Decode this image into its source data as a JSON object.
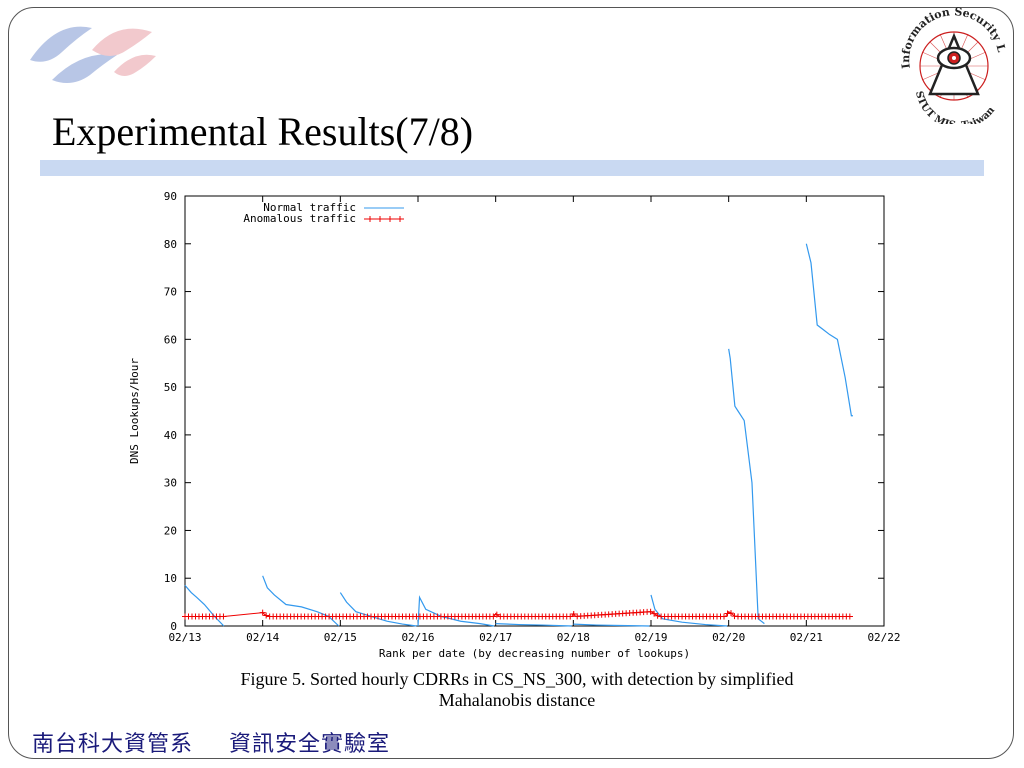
{
  "slide": {
    "title": "Experimental Results(7/8)",
    "caption_line1": "Figure 5. Sorted hourly CDRRs in CS_NS_300, with detection by simplified",
    "caption_line2": "Mahalanobis distance",
    "footer_left": "南台科大資管系",
    "footer_right": "資訊安全實驗室",
    "seal_text": "Information Security Lab.",
    "seal_bottom": "STUT MIS, Taiwan"
  },
  "colors": {
    "accent_bar": "#c9d9f2",
    "normal_series": "#3399ee",
    "anomalous_series": "#ee0000",
    "seal_red": "#cc1f1f"
  },
  "chart_data": {
    "type": "line",
    "xlabel": "Rank per date (by decreasing number of lookups)",
    "ylabel": "DNS Lookups/Hour",
    "x_tick_labels": [
      "02/13",
      "02/14",
      "02/15",
      "02/16",
      "02/17",
      "02/18",
      "02/19",
      "02/20",
      "02/21",
      "02/22"
    ],
    "y_ticks": [
      0,
      10,
      20,
      30,
      40,
      50,
      60,
      70,
      80,
      90
    ],
    "xlim": [
      0,
      9
    ],
    "ylim": [
      0,
      90
    ],
    "legend_position": "top-left",
    "series": [
      {
        "name": "Normal traffic",
        "x": [
          0,
          0.08,
          0.15,
          0.25,
          0.38,
          0.5,
          1.0,
          1.06,
          1.15,
          1.3,
          1.5,
          1.7,
          1.85,
          1.98,
          2.0,
          2.08,
          2.2,
          2.4,
          2.6,
          2.8,
          2.98,
          3.0,
          3.02,
          3.1,
          3.3,
          3.55,
          3.8,
          3.98,
          4.0,
          4.3,
          4.6,
          4.98,
          5.0,
          5.3,
          5.6,
          5.98,
          6.0,
          6.05,
          6.15,
          6.4,
          6.7,
          6.98,
          7.0,
          7.02,
          7.08,
          7.12,
          7.2,
          7.3,
          7.38,
          7.46,
          8.0,
          8.06,
          8.14,
          8.22,
          8.3,
          8.4,
          8.5,
          8.58,
          8.6
        ],
        "y": [
          8.5,
          7,
          6,
          4.5,
          2,
          0,
          10.5,
          8,
          6.5,
          4.5,
          4,
          3,
          2,
          0,
          7,
          5,
          3,
          2,
          1,
          0.4,
          0,
          0,
          6,
          3.5,
          2,
          1,
          0.5,
          0,
          0.5,
          0.3,
          0.2,
          0,
          0.4,
          0.2,
          0.1,
          0,
          6.5,
          3.5,
          1.5,
          0.8,
          0.3,
          0,
          58,
          56,
          46,
          45,
          43,
          30,
          1.5,
          0.5,
          80,
          76,
          63,
          62,
          61,
          60,
          52,
          44,
          44
        ]
      },
      {
        "name": "Anomalous traffic",
        "x": [
          0,
          0.5,
          1.0,
          1.02,
          1.06,
          3.98,
          4.0,
          4.02,
          4.05,
          4.98,
          5.0,
          5.03,
          6.0,
          6.04,
          6.1,
          6.96,
          7.0,
          7.04,
          7.08,
          8.6
        ],
        "y": [
          2,
          2,
          2.8,
          2.5,
          2,
          2,
          2.6,
          2.3,
          2,
          2,
          2.6,
          2,
          3,
          2.6,
          2,
          2,
          3,
          2.6,
          2,
          2
        ]
      }
    ]
  }
}
